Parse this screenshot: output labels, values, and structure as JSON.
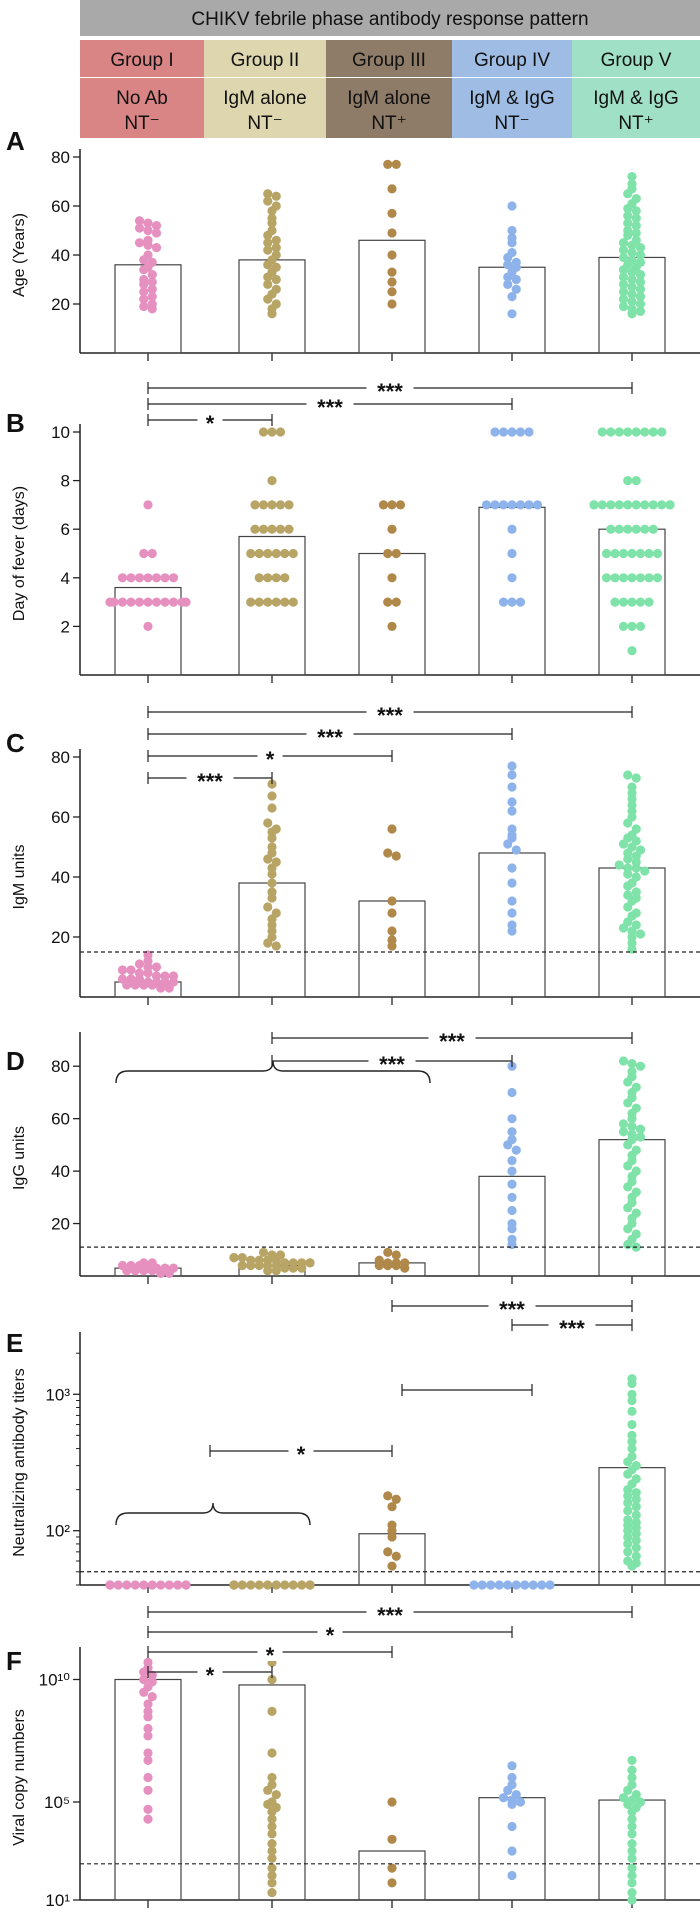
{
  "figure": {
    "title": "CHIKV febrile phase antibody response pattern",
    "groups": [
      {
        "name": "Group I",
        "line1": "No Ab",
        "line2": "NT⁻",
        "color": "#d98585",
        "dot": "#e690c0"
      },
      {
        "name": "Group II",
        "line1": "IgM alone",
        "line2": "NT⁻",
        "color": "#ddd6ae",
        "dot": "#b8a566"
      },
      {
        "name": "Group III",
        "line1": "IgM alone",
        "line2": "NT⁺",
        "color": "#8e7c68",
        "dot": "#b0884a"
      },
      {
        "name": "Group IV",
        "line1": "IgM & IgG",
        "line2": "NT⁻",
        "color": "#9fbde4",
        "dot": "#8eb2ea"
      },
      {
        "name": "Group V",
        "line1": "IgM & IgG",
        "line2": "NT⁺",
        "color": "#9fe0c6",
        "dot": "#7fe3a9"
      }
    ]
  },
  "chart_data": [
    {
      "panel": "A",
      "type": "scatter",
      "ylabel": "Age (Years)",
      "scale": "linear",
      "ylim": [
        0,
        80
      ],
      "yticks": [
        20,
        40,
        60,
        80
      ],
      "ytick_labels": [
        "20",
        "40",
        "60",
        "80"
      ],
      "bar_values": [
        36,
        38,
        46,
        35,
        39
      ],
      "cutoff": null,
      "series": [
        {
          "group": "Group I",
          "values": [
            54,
            53,
            52,
            51,
            50,
            49,
            46,
            45,
            44,
            43,
            40,
            38,
            37,
            35,
            34,
            32,
            30,
            29,
            28,
            26,
            25,
            23,
            22,
            20,
            19,
            18
          ]
        },
        {
          "group": "Group II",
          "values": [
            65,
            64,
            62,
            60,
            58,
            55,
            53,
            50,
            48,
            46,
            45,
            43,
            42,
            40,
            38,
            36,
            35,
            33,
            31,
            30,
            28,
            26,
            24,
            22,
            20,
            18,
            16
          ]
        },
        {
          "group": "Group III",
          "values": [
            77,
            77,
            67,
            57,
            49,
            40,
            33,
            29,
            25,
            20
          ]
        },
        {
          "group": "Group IV",
          "values": [
            60,
            50,
            47,
            45,
            41,
            39,
            37,
            36,
            35,
            33,
            31,
            30,
            28,
            26,
            23,
            16
          ]
        },
        {
          "group": "Group V",
          "values": [
            72,
            69,
            67,
            65,
            63,
            61,
            59,
            58,
            56,
            55,
            53,
            52,
            50,
            49,
            48,
            46,
            45,
            44,
            43,
            42,
            41,
            40,
            39,
            38,
            37,
            36,
            35,
            34,
            33,
            32,
            31,
            30,
            29,
            28,
            27,
            26,
            25,
            24,
            23,
            22,
            21,
            20,
            19,
            18,
            17,
            16
          ]
        }
      ],
      "comparisons": []
    },
    {
      "panel": "B",
      "type": "scatter",
      "ylabel": "Day of fever (days)",
      "scale": "linear",
      "ylim": [
        0,
        10
      ],
      "yticks": [
        2,
        4,
        6,
        8,
        10
      ],
      "ytick_labels": [
        "2",
        "4",
        "6",
        "8",
        "10"
      ],
      "bar_values": [
        3.6,
        5.7,
        5.0,
        6.9,
        6.0
      ],
      "cutoff": null,
      "series": [
        {
          "group": "Group I",
          "values": [
            7,
            5,
            5,
            4,
            4,
            4,
            4,
            4,
            4,
            4,
            3,
            3,
            3,
            3,
            3,
            3,
            3,
            3,
            3,
            3,
            3,
            2
          ]
        },
        {
          "group": "Group II",
          "values": [
            10,
            10,
            10,
            8,
            7,
            7,
            7,
            7,
            7,
            6,
            6,
            6,
            6,
            6,
            5,
            5,
            5,
            5,
            5,
            5,
            4,
            4,
            4,
            4,
            3,
            3,
            3,
            3,
            3,
            3
          ]
        },
        {
          "group": "Group III",
          "values": [
            7,
            7,
            7,
            6,
            5,
            5,
            4,
            3,
            3,
            2
          ]
        },
        {
          "group": "Group IV",
          "values": [
            10,
            10,
            10,
            10,
            10,
            7,
            7,
            7,
            7,
            7,
            7,
            7,
            6,
            5,
            4,
            3,
            3,
            3
          ]
        },
        {
          "group": "Group V",
          "values": [
            10,
            10,
            10,
            10,
            10,
            10,
            10,
            10,
            8,
            8,
            7,
            7,
            7,
            7,
            7,
            7,
            7,
            7,
            7,
            7,
            7,
            7,
            6,
            6,
            6,
            6,
            6,
            6,
            5,
            5,
            5,
            5,
            5,
            5,
            5,
            4,
            4,
            4,
            4,
            4,
            4,
            4,
            3,
            3,
            3,
            3,
            3,
            2,
            2,
            2,
            1
          ]
        }
      ],
      "comparisons": [
        {
          "from": 0,
          "to": 4,
          "label": "***"
        },
        {
          "from": 0,
          "to": 3,
          "label": "***"
        },
        {
          "from": 0,
          "to": 1,
          "label": "*"
        }
      ]
    },
    {
      "panel": "C",
      "type": "scatter",
      "ylabel": "IgM units",
      "scale": "linear",
      "ylim": [
        0,
        80
      ],
      "yticks": [
        20,
        40,
        60,
        80
      ],
      "ytick_labels": [
        "20",
        "40",
        "60",
        "80"
      ],
      "bar_values": [
        5,
        38,
        32,
        48,
        43
      ],
      "cutoff": 15,
      "series": [
        {
          "group": "Group I",
          "values": [
            14,
            12,
            11,
            10,
            10,
            9,
            9,
            8,
            8,
            7,
            7,
            7,
            6,
            6,
            6,
            5,
            5,
            5,
            5,
            4,
            4,
            4,
            4,
            3,
            3
          ]
        },
        {
          "group": "Group II",
          "values": [
            71,
            67,
            63,
            58,
            56,
            55,
            53,
            50,
            48,
            46,
            45,
            43,
            41,
            38,
            35,
            33,
            30,
            28,
            26,
            24,
            22,
            20,
            18,
            17
          ]
        },
        {
          "group": "Group III",
          "values": [
            56,
            48,
            47,
            32,
            28,
            22,
            19,
            17
          ]
        },
        {
          "group": "Group IV",
          "values": [
            77,
            74,
            70,
            65,
            62,
            56,
            54,
            53,
            51,
            49,
            43,
            38,
            32,
            28,
            24,
            22
          ]
        },
        {
          "group": "Group V",
          "values": [
            74,
            73,
            70,
            68,
            66,
            64,
            62,
            60,
            58,
            56,
            54,
            53,
            52,
            51,
            50,
            49,
            48,
            47,
            46,
            45,
            44,
            43,
            43,
            42,
            41,
            40,
            38,
            37,
            35,
            34,
            33,
            32,
            30,
            28,
            27,
            25,
            24,
            23,
            22,
            21,
            20,
            18,
            16
          ]
        }
      ],
      "comparisons": [
        {
          "from": 0,
          "to": 4,
          "label": "***"
        },
        {
          "from": 0,
          "to": 3,
          "label": "***"
        },
        {
          "from": 0,
          "to": 2,
          "label": "*"
        },
        {
          "from": 0,
          "to": 1,
          "label": "***"
        }
      ]
    },
    {
      "panel": "D",
      "type": "scatter",
      "ylabel": "IgG units",
      "scale": "linear",
      "ylim": [
        0,
        90
      ],
      "yticks": [
        20,
        40,
        60,
        80
      ],
      "ytick_labels": [
        "20",
        "40",
        "60",
        "80"
      ],
      "bar_values": [
        3,
        4,
        5,
        38,
        52
      ],
      "cutoff": 11,
      "series": [
        {
          "group": "Group I",
          "values": [
            5,
            5,
            4,
            4,
            4,
            3,
            3,
            3,
            3,
            2,
            2,
            2,
            2,
            1,
            1
          ]
        },
        {
          "group": "Group II",
          "values": [
            9,
            8,
            8,
            7,
            7,
            7,
            6,
            6,
            6,
            6,
            5,
            5,
            5,
            5,
            5,
            4,
            4,
            4,
            4,
            4,
            3,
            3,
            3,
            2,
            2
          ]
        },
        {
          "group": "Group III",
          "values": [
            9,
            8,
            6,
            5,
            5,
            5,
            4,
            4,
            4,
            3
          ]
        },
        {
          "group": "Group IV",
          "values": [
            80,
            70,
            60,
            55,
            52,
            50,
            48,
            44,
            40,
            35,
            30,
            25,
            20,
            18,
            14,
            12
          ]
        },
        {
          "group": "Group V",
          "values": [
            82,
            81,
            80,
            78,
            76,
            74,
            72,
            70,
            68,
            66,
            64,
            62,
            60,
            58,
            57,
            56,
            55,
            54,
            53,
            52,
            50,
            48,
            46,
            44,
            42,
            40,
            38,
            36,
            34,
            32,
            30,
            28,
            26,
            24,
            22,
            20,
            18,
            16,
            14,
            12,
            11
          ]
        }
      ],
      "comparisons": [
        {
          "from": 1,
          "to": 4,
          "label": "***"
        },
        {
          "from": 1,
          "to": 3,
          "label": "***"
        }
      ],
      "braces": [
        {
          "from": 0,
          "to": 2
        }
      ]
    },
    {
      "panel": "E",
      "type": "scatter",
      "ylabel": "Neutralizing antibody titers",
      "scale": "log",
      "ylim": [
        40,
        2500
      ],
      "yticks": [
        100,
        1000
      ],
      "ytick_labels": [
        "10²",
        "10³"
      ],
      "bar_values": [
        40,
        40,
        95,
        40,
        290
      ],
      "cutoff": 50,
      "series": [
        {
          "group": "Group I",
          "values": [
            40,
            40,
            40,
            40,
            40,
            40,
            40,
            40,
            40,
            40,
            40,
            40
          ]
        },
        {
          "group": "Group II",
          "values": [
            40,
            40,
            40,
            40,
            40,
            40,
            40,
            40,
            40,
            40,
            40,
            40,
            40,
            40
          ]
        },
        {
          "group": "Group III",
          "values": [
            180,
            170,
            150,
            110,
            100,
            90,
            70,
            65,
            55
          ]
        },
        {
          "group": "Group IV",
          "values": [
            40,
            40,
            40,
            40,
            40,
            40,
            40,
            40,
            40,
            40
          ]
        },
        {
          "group": "Group V",
          "values": [
            1300,
            1200,
            1000,
            900,
            750,
            600,
            500,
            450,
            400,
            350,
            320,
            300,
            280,
            260,
            240,
            220,
            200,
            190,
            180,
            170,
            160,
            150,
            140,
            130,
            120,
            115,
            110,
            105,
            100,
            95,
            90,
            85,
            80,
            75,
            70,
            65,
            60,
            58,
            55
          ]
        }
      ],
      "comparisons": [
        {
          "from": 2,
          "to": 4,
          "label": "***"
        },
        {
          "from": 3,
          "to": 4,
          "label": "***"
        },
        {
          "from": 2,
          "to": 3,
          "label": ""
        },
        {
          "from": 0.5,
          "to": 2,
          "label": "*"
        }
      ],
      "braces": [
        {
          "from": 0,
          "to": 1
        }
      ]
    },
    {
      "panel": "F",
      "type": "scatter",
      "ylabel": "Viral copy numbers",
      "scale": "log",
      "ylim": [
        10,
        100000000000
      ],
      "yticks": [
        10,
        100000,
        10000000000
      ],
      "ytick_labels": [
        "10¹",
        "10⁵",
        "10¹⁰"
      ],
      "bar_values": [
        10000000000,
        6000000000,
        1000,
        150000,
        120000
      ],
      "cutoff": 300,
      "series": [
        {
          "group": "Group I",
          "values": [
            50000000000,
            30000000000,
            20000000000,
            15000000000,
            10000000000,
            8000000000,
            5000000000,
            3000000000,
            2000000000,
            1000000000,
            500000000,
            300000000,
            100000000,
            50000000,
            10000000,
            5000000,
            1000000,
            300000,
            50000,
            20000
          ]
        },
        {
          "group": "Group II",
          "values": [
            50000000000,
            10000000000,
            500000000,
            10000000,
            1000000,
            500000,
            300000,
            200000,
            100000,
            80000,
            60000,
            40000,
            20000,
            10000,
            5000,
            2000,
            1000,
            500,
            200,
            100,
            50,
            20
          ]
        },
        {
          "group": "Group III",
          "values": [
            100000,
            3000,
            200,
            50
          ]
        },
        {
          "group": "Group IV",
          "values": [
            3000000,
            1000000,
            500000,
            300000,
            200000,
            150000,
            120000,
            100000,
            80000,
            10000,
            1000,
            100
          ]
        },
        {
          "group": "Group V",
          "values": [
            5000000,
            2000000,
            1000000,
            500000,
            300000,
            200000,
            150000,
            120000,
            100000,
            80000,
            60000,
            40000,
            20000,
            10000,
            5000,
            2000,
            1000,
            500,
            200,
            100,
            50,
            20,
            10
          ]
        }
      ],
      "comparisons": [
        {
          "from": 0,
          "to": 4,
          "label": "***"
        },
        {
          "from": 0,
          "to": 3,
          "label": "*"
        },
        {
          "from": 0,
          "to": 2,
          "label": "*"
        },
        {
          "from": 0,
          "to": 1,
          "label": "*"
        }
      ]
    }
  ]
}
